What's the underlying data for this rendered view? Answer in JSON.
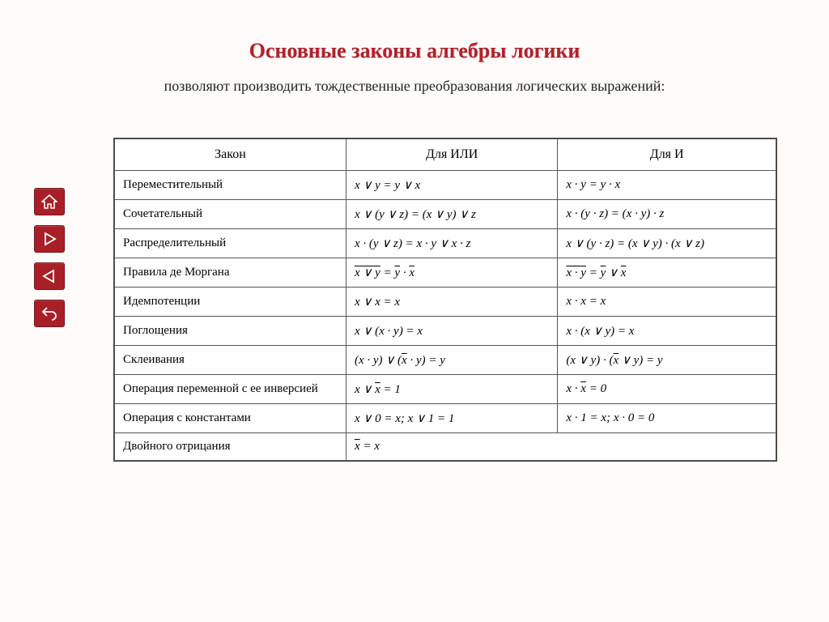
{
  "title": "Основные законы алгебры логики",
  "subtitle": "позволяют производить тождественные преобразования логических выражений:",
  "columns": [
    "Закон",
    "Для  ИЛИ",
    "Для  И"
  ],
  "rows": [
    {
      "name": "Переместительный",
      "or": "<i>x</i> ∨ <i>y</i> = <i>y</i> ∨ <i>x</i>",
      "and": "<i>x</i> · <i>y</i> = <i>y</i> · <i>x</i>"
    },
    {
      "name": "Сочетательный",
      "or": "<i>x</i> ∨ (<i>y</i> ∨ <i>z</i>) =  (<i>x</i> ∨ <i>y</i>) ∨ <i>z</i>",
      "and": "<i>x</i> · (<i>y</i> · <i>z</i>) = (<i>x</i> · <i>y</i>) · <i>z</i>"
    },
    {
      "name": "Распределительный",
      "or": "<i>x</i> · (<i>y</i> ∨ <i>z</i>) = <i>x</i> · <i>y</i> ∨ <i>x</i> · <i>z</i>",
      "and": "<i>x</i> ∨ (<i>y</i> · <i>z</i>) = (<i>x</i> ∨ <i>y</i>) · (<i>x</i> ∨ <i>z</i>)"
    },
    {
      "name": "Правила де Моргана",
      "or": "<span class='ov'><i>x</i> ∨ <i>y</i></span> = <span class='ov'><i>y</i></span> · <span class='ov'><i>x</i></span>",
      "and": "<span class='ov'><i>x</i> · <i>y</i></span> = <span class='ov'><i>y</i></span> ∨ <span class='ov'><i>x</i></span>"
    },
    {
      "name": "Идемпотенции",
      "or": "<i>x</i> ∨ <i>x</i> = <i>x</i>",
      "and": "<i>x</i> · <i>x</i> = <i>x</i>"
    },
    {
      "name": "Поглощения",
      "or": "<i>x</i> ∨ (<i>x</i> · <i>y</i>) = <i>x</i>",
      "and": "<i>x</i> · (<i>x</i> ∨ <i>y</i>) = <i>x</i>"
    },
    {
      "name": "Склеивания",
      "or": "(<i>x</i> · <i>y</i>) ∨ (<span class='ov'><i>x</i></span> · <i>y</i>) = <i>y</i>",
      "and": "(<i>x</i> ∨ <i>y</i>) · (<span class='ov'><i>x</i></span> ∨ <i>y</i>) = <i>y</i>"
    },
    {
      "name": "Операция переменной с ее инверсией",
      "or": "<i>x</i> ∨ <span class='ov'><i>x</i></span> = 1",
      "and": "<i>x</i> · <span class='ov'><i>x</i></span> = 0"
    },
    {
      "name": "Операция с константами",
      "or": "<i>x</i> ∨ 0 = <i>x</i>;  <i>x</i> ∨ 1 = 1",
      "and": "<i>x</i> · 1 = <i>x</i>;  <i>x</i> · 0 = 0"
    },
    {
      "name": "Двойного отрицания",
      "or": "<span class='ov' style='padding-top:2px;'><span class='ov'><i>x</i></span></span> = <i>x</i>",
      "and": ""
    }
  ],
  "nav": {
    "home": "home-icon",
    "play": "play-icon",
    "back": "back-icon",
    "return": "return-icon"
  },
  "colors": {
    "title": "#b3202a",
    "nav_bg": "#a91f27",
    "border": "#555555",
    "page_bg": "#fdfcfa"
  },
  "table_style": {
    "font_family": "Times New Roman",
    "header_fontsize_pt": 12,
    "cell_fontsize_pt": 11,
    "col_widths_pct": [
      35,
      32,
      33
    ]
  }
}
